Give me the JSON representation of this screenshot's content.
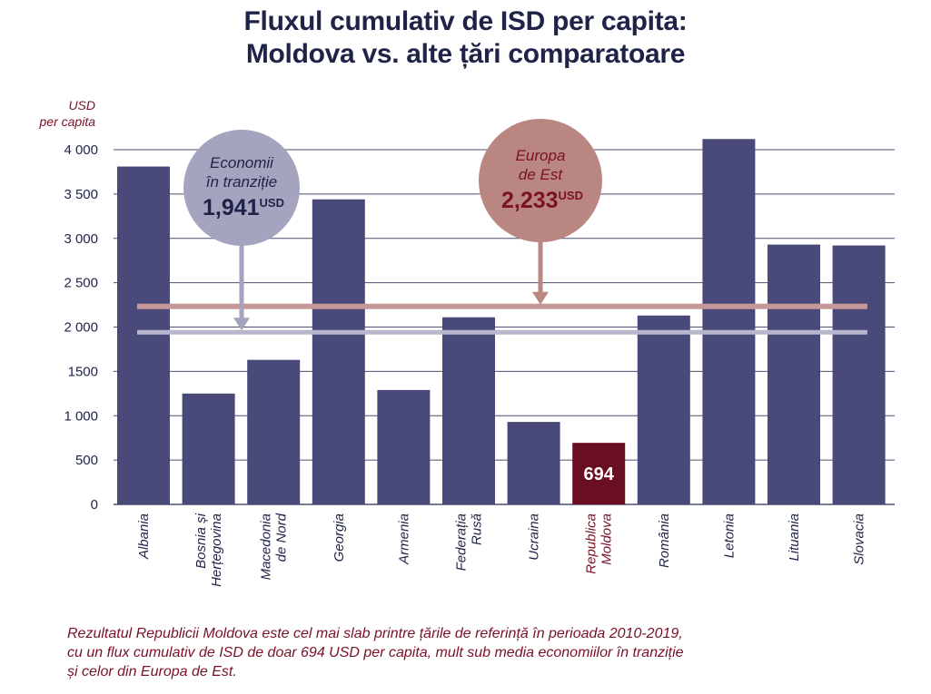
{
  "title": {
    "line1": "Fluxul cumulativ de ISD per capita:",
    "line2": "Moldova vs. alte țări comparatoare"
  },
  "colors": {
    "bar": "#494a7a",
    "highlight_bar": "#6a0f22",
    "grid": "#4d4f6e",
    "title": "#1e2347",
    "accent_red": "#7a1126",
    "transition_line": "#b7b6cc",
    "transition_circle": "#a5a4bf",
    "europe_line": "#c69898",
    "europe_circle": "#b98682"
  },
  "chart_data": {
    "type": "bar",
    "ylabel_line1": "USD",
    "ylabel_line2": "per capita",
    "ylim": [
      0,
      4000
    ],
    "yticks": [
      0,
      500,
      1000,
      1500,
      2000,
      2500,
      3000,
      3500,
      4000
    ],
    "ytick_labels": [
      "0",
      "500",
      "1 000",
      "1500",
      "2 000",
      "2 500",
      "3 000",
      "3 500",
      "4 000"
    ],
    "grid": true,
    "categories": [
      {
        "label": [
          "Albania"
        ],
        "value": 3810
      },
      {
        "label": [
          "Bosnia și",
          "Herțegovina"
        ],
        "value": 1250
      },
      {
        "label": [
          "Macedonia",
          "de Nord"
        ],
        "value": 1630
      },
      {
        "label": [
          "Georgia"
        ],
        "value": 3440
      },
      {
        "label": [
          "Armenia"
        ],
        "value": 1290
      },
      {
        "label": [
          "Federația",
          "Rusă"
        ],
        "value": 2110
      },
      {
        "label": [
          "Ucraina"
        ],
        "value": 930
      },
      {
        "label": [
          "Republica",
          "Moldova"
        ],
        "value": 694,
        "highlight": true,
        "data_label": "694"
      },
      {
        "label": [
          "România"
        ],
        "value": 2130
      },
      {
        "label": [
          "Letonia"
        ],
        "value": 4120
      },
      {
        "label": [
          "Lituania"
        ],
        "value": 2930
      },
      {
        "label": [
          "Slovacia"
        ],
        "value": 2920
      }
    ],
    "reference_lines": [
      {
        "name_line1": "Economii",
        "name_line2": "în tranziție",
        "value_text": "1,941",
        "unit": "USD",
        "value": 1941
      },
      {
        "name_line1": "Europa",
        "name_line2": "de Est",
        "value_text": "2,233",
        "unit": "USD",
        "value": 2233
      }
    ]
  },
  "footnote": {
    "line1": "Rezultatul Republicii Moldova este cel mai slab printre țările de referință în perioada 2010-2019,",
    "line2": "cu un flux cumulativ de ISD de doar 694 USD per capita, mult sub media economiilor în tranziție",
    "line3": "și celor din Europa de Est."
  }
}
